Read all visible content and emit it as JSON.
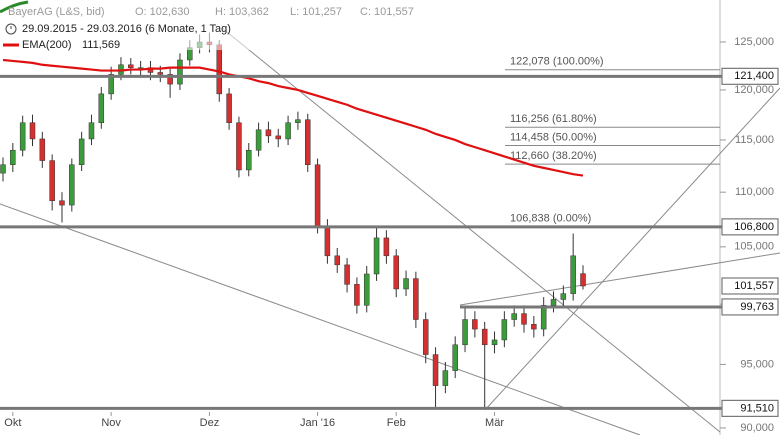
{
  "chart_data": {
    "type": "candlestick",
    "title": "BayerAG (L&S, bid)",
    "quote": [
      "O: 102,630",
      "H: 103,362",
      "L: 101,257",
      "C: 101,557"
    ],
    "subtitle": "29.09.2015 - 29.03.2016 (6 Monate, 1 Tag)",
    "log": true,
    "ylim": [
      89.46,
      129.55
    ],
    "yticks": [
      {
        "value": 90,
        "label": "90,000"
      },
      {
        "value": 95,
        "label": "95,000"
      },
      {
        "value": 100,
        "label": "100,000"
      },
      {
        "value": 105,
        "label": "105,000"
      },
      {
        "value": 110,
        "label": "110,000"
      },
      {
        "value": 115,
        "label": "115,000"
      },
      {
        "value": 120,
        "label": "120,000"
      },
      {
        "value": 125,
        "label": "125,000"
      }
    ],
    "categories": [
      null,
      "Okt",
      null,
      null,
      null,
      null,
      null,
      null,
      null,
      null,
      null,
      "Nov",
      null,
      null,
      null,
      null,
      null,
      null,
      null,
      null,
      null,
      "Dez",
      null,
      null,
      null,
      null,
      null,
      null,
      null,
      null,
      null,
      null,
      "Jan '16",
      null,
      null,
      null,
      null,
      null,
      null,
      null,
      "Feb",
      null,
      null,
      null,
      null,
      null,
      null,
      null,
      null,
      null,
      "Mär",
      null,
      null,
      null,
      null,
      null,
      null,
      null,
      null,
      null
    ],
    "up_color": "#3c9c3c",
    "down_color": "#d43030",
    "open": [
      111.8,
      112.6,
      114.0,
      116.7,
      115.1,
      113.0,
      109.2,
      108.8,
      112.6,
      115.1,
      116.7,
      119.6,
      121.6,
      122.6,
      122.3,
      122.3,
      121.8,
      121.6,
      120.6,
      123.1,
      124.4,
      125.0,
      124.7,
      119.6,
      116.7,
      112.1,
      114.0,
      116.0,
      115.4,
      115.1,
      116.7,
      117.0,
      112.6,
      106.9,
      104.2,
      103.4,
      101.7,
      99.9,
      102.6,
      105.8,
      104.2,
      101.3,
      102.2,
      98.7,
      95.8,
      93.3,
      94.5,
      96.6,
      98.7,
      97.9,
      96.6,
      97.0,
      98.7,
      99.2,
      98.3,
      97.9,
      99.9,
      100.4,
      100.9,
      102.63
    ],
    "high": [
      113.3,
      114.7,
      117.4,
      117.5,
      115.8,
      113.6,
      110.0,
      113.2,
      115.8,
      117.5,
      120.3,
      122.4,
      123.4,
      123.3,
      123.0,
      123.0,
      122.5,
      122.2,
      123.8,
      125.2,
      125.8,
      126.0,
      125.2,
      120.2,
      117.3,
      114.7,
      116.7,
      116.8,
      116.1,
      117.4,
      117.8,
      117.6,
      113.2,
      107.5,
      104.9,
      104.0,
      102.3,
      103.3,
      106.8,
      106.5,
      104.8,
      102.9,
      102.8,
      99.3,
      96.4,
      95.2,
      97.3,
      99.8,
      99.4,
      98.5,
      97.7,
      99.4,
      99.9,
      99.9,
      99.0,
      100.6,
      101.1,
      101.6,
      106.2,
      103.362
    ],
    "low": [
      111.0,
      111.9,
      113.4,
      114.4,
      112.3,
      108.3,
      107.2,
      108.2,
      112.0,
      114.5,
      116.1,
      119.0,
      121.0,
      121.6,
      121.5,
      121.0,
      120.8,
      119.2,
      120.0,
      122.5,
      123.8,
      123.9,
      118.8,
      116.0,
      111.4,
      111.5,
      113.4,
      114.7,
      114.3,
      114.5,
      116.0,
      111.9,
      106.2,
      103.5,
      102.7,
      101.0,
      99.2,
      99.3,
      102.0,
      103.5,
      100.6,
      100.7,
      98.0,
      95.1,
      91.5,
      92.7,
      93.9,
      96.0,
      97.2,
      91.6,
      95.9,
      96.4,
      98.1,
      97.6,
      97.2,
      97.3,
      99.3,
      99.7,
      100.3,
      101.257
    ],
    "close": [
      112.6,
      114.0,
      116.7,
      115.1,
      113.0,
      109.2,
      108.8,
      112.6,
      115.1,
      116.7,
      119.6,
      121.6,
      122.6,
      122.3,
      122.3,
      121.8,
      121.6,
      120.6,
      123.1,
      124.4,
      125.0,
      124.7,
      119.6,
      116.7,
      112.1,
      114.0,
      116.0,
      115.4,
      115.1,
      116.7,
      117.0,
      112.6,
      106.9,
      104.2,
      103.4,
      101.7,
      99.9,
      102.6,
      105.8,
      104.2,
      101.3,
      102.2,
      98.7,
      95.8,
      93.3,
      94.5,
      96.6,
      98.7,
      97.9,
      96.6,
      97.0,
      98.7,
      99.2,
      98.3,
      97.9,
      99.9,
      100.4,
      100.9,
      104.2,
      101.557
    ],
    "series": [
      {
        "name": "EMA(200)",
        "color": "#e01010",
        "value_label": "111,569",
        "values": [
          123.1,
          123.0,
          122.9,
          122.8,
          122.6,
          122.5,
          122.4,
          122.3,
          122.2,
          122.1,
          122.0,
          122.0,
          122.0,
          122.1,
          122.1,
          122.2,
          122.2,
          122.3,
          122.3,
          122.3,
          122.3,
          122.1,
          121.9,
          121.6,
          121.4,
          121.2,
          120.9,
          120.7,
          120.4,
          120.2,
          120.0,
          119.7,
          119.4,
          119.1,
          118.8,
          118.5,
          118.1,
          117.8,
          117.5,
          117.2,
          116.9,
          116.6,
          116.3,
          116.0,
          115.6,
          115.3,
          115.0,
          114.6,
          114.3,
          114.0,
          113.7,
          113.4,
          113.1,
          112.8,
          112.5,
          112.3,
          112.1,
          111.9,
          111.7,
          111.569
        ]
      }
    ],
    "levels": [
      {
        "value": 121.4,
        "label": "121,400"
      },
      {
        "value": 106.8,
        "label": "106,800"
      },
      {
        "value": 99.763,
        "label": "99,763"
      },
      {
        "value": 91.51,
        "label": "91,510"
      }
    ],
    "last_price": {
      "value": 101.557,
      "label": "101,557"
    },
    "fibonacci": [
      {
        "value": 122.078,
        "label": "122,078 (100.00%)"
      },
      {
        "value": 116.256,
        "label": "116,256 (61.80%)"
      },
      {
        "value": 114.458,
        "label": "114,458 (50.00%)"
      },
      {
        "value": 112.66,
        "label": "112,660 (38.20%)"
      },
      {
        "value": 106.838,
        "label": "106,838 (0.00%)"
      }
    ]
  }
}
